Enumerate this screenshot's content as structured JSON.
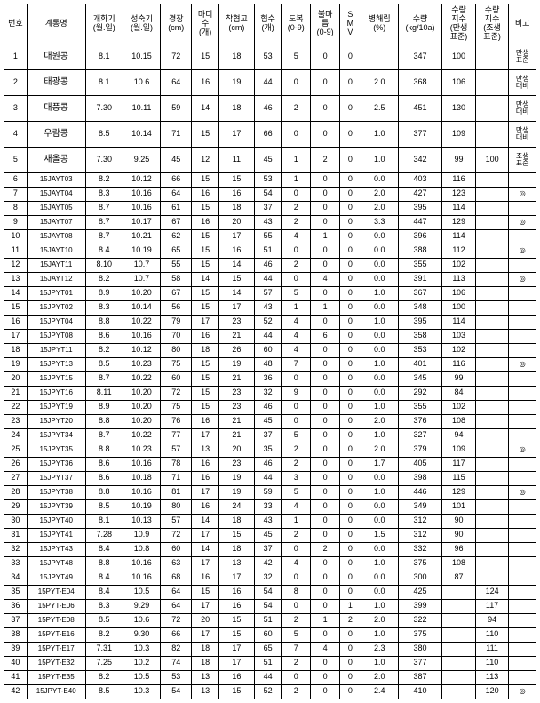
{
  "headers": [
    "번호",
    "계통명",
    "개화기\n(월.일)",
    "성숙기\n(월.일)",
    "경장\n(cm)",
    "마디\n수\n(개)",
    "착협고\n(cm)",
    "협수\n(개)",
    "도복\n(0-9)",
    "불마\n름\n(0-9)",
    "S\nM\nV",
    "병해립\n(%)",
    "수량\n(kg/10a)",
    "수량\n지수\n(만생\n표준)",
    "수량\n지수\n(조생\n표준)",
    "비고"
  ],
  "rows": [
    {
      "tall": true,
      "c": [
        "1",
        "대원콩",
        "8.1",
        "10.15",
        "72",
        "15",
        "18",
        "53",
        "5",
        "0",
        "0",
        "",
        "347",
        "100",
        "",
        "만생\n표준"
      ]
    },
    {
      "tall": true,
      "c": [
        "2",
        "태광콩",
        "8.1",
        "10.6",
        "64",
        "16",
        "19",
        "44",
        "0",
        "0",
        "0",
        "2.0",
        "368",
        "106",
        "",
        "만생\n대비"
      ]
    },
    {
      "tall": true,
      "c": [
        "3",
        "대풍콩",
        "7.30",
        "10.11",
        "59",
        "14",
        "18",
        "46",
        "2",
        "0",
        "0",
        "2.5",
        "451",
        "130",
        "",
        "만생\n대비"
      ]
    },
    {
      "tall": true,
      "c": [
        "4",
        "우람콩",
        "8.5",
        "10.14",
        "71",
        "15",
        "17",
        "66",
        "0",
        "0",
        "0",
        "1.0",
        "377",
        "109",
        "",
        "만생\n대비"
      ]
    },
    {
      "tall": true,
      "c": [
        "5",
        "새올콩",
        "7.30",
        "9.25",
        "45",
        "12",
        "11",
        "45",
        "1",
        "2",
        "0",
        "1.0",
        "342",
        "99",
        "100",
        "조생\n표준"
      ]
    },
    {
      "tall": false,
      "c": [
        "6",
        "15JAYT03",
        "8.2",
        "10.12",
        "66",
        "15",
        "15",
        "53",
        "1",
        "0",
        "0",
        "0.0",
        "403",
        "116",
        "",
        ""
      ]
    },
    {
      "tall": false,
      "c": [
        "7",
        "15JAYT04",
        "8.3",
        "10.16",
        "64",
        "16",
        "16",
        "54",
        "0",
        "0",
        "0",
        "2.0",
        "427",
        "123",
        "",
        "◎"
      ]
    },
    {
      "tall": false,
      "c": [
        "8",
        "15JAYT05",
        "8.7",
        "10.16",
        "61",
        "15",
        "18",
        "37",
        "2",
        "0",
        "0",
        "2.0",
        "395",
        "114",
        "",
        ""
      ]
    },
    {
      "tall": false,
      "c": [
        "9",
        "15JAYT07",
        "8.7",
        "10.17",
        "67",
        "16",
        "20",
        "43",
        "2",
        "0",
        "0",
        "3.3",
        "447",
        "129",
        "",
        "◎"
      ]
    },
    {
      "tall": false,
      "c": [
        "10",
        "15JAYT08",
        "8.7",
        "10.21",
        "62",
        "15",
        "17",
        "55",
        "4",
        "1",
        "0",
        "0.0",
        "396",
        "114",
        "",
        ""
      ]
    },
    {
      "tall": false,
      "c": [
        "11",
        "15JAYT10",
        "8.4",
        "10.19",
        "65",
        "15",
        "16",
        "51",
        "0",
        "0",
        "0",
        "0.0",
        "388",
        "112",
        "",
        "◎"
      ]
    },
    {
      "tall": false,
      "c": [
        "12",
        "15JAYT11",
        "8.10",
        "10.7",
        "55",
        "15",
        "14",
        "46",
        "2",
        "0",
        "0",
        "0.0",
        "355",
        "102",
        "",
        ""
      ]
    },
    {
      "tall": false,
      "c": [
        "13",
        "15JAYT12",
        "8.2",
        "10.7",
        "58",
        "14",
        "15",
        "44",
        "0",
        "4",
        "0",
        "0.0",
        "391",
        "113",
        "",
        "◎"
      ]
    },
    {
      "tall": false,
      "c": [
        "14",
        "15JPYT01",
        "8.9",
        "10.20",
        "67",
        "15",
        "14",
        "57",
        "5",
        "0",
        "0",
        "1.0",
        "367",
        "106",
        "",
        ""
      ]
    },
    {
      "tall": false,
      "c": [
        "15",
        "15JPYT02",
        "8.3",
        "10.14",
        "56",
        "15",
        "17",
        "43",
        "1",
        "1",
        "0",
        "0.0",
        "348",
        "100",
        "",
        ""
      ]
    },
    {
      "tall": false,
      "c": [
        "16",
        "15JPYT04",
        "8.8",
        "10.22",
        "79",
        "17",
        "23",
        "52",
        "4",
        "0",
        "0",
        "1.0",
        "395",
        "114",
        "",
        ""
      ]
    },
    {
      "tall": false,
      "c": [
        "17",
        "15JPYT08",
        "8.6",
        "10.16",
        "70",
        "16",
        "21",
        "44",
        "4",
        "6",
        "0",
        "0.0",
        "358",
        "103",
        "",
        ""
      ]
    },
    {
      "tall": false,
      "c": [
        "18",
        "15JPYT11",
        "8.2",
        "10.12",
        "80",
        "18",
        "26",
        "60",
        "4",
        "0",
        "0",
        "0.0",
        "353",
        "102",
        "",
        ""
      ]
    },
    {
      "tall": false,
      "c": [
        "19",
        "15JPYT13",
        "8.5",
        "10.23",
        "75",
        "15",
        "19",
        "48",
        "7",
        "0",
        "0",
        "1.0",
        "401",
        "116",
        "",
        "◎"
      ]
    },
    {
      "tall": false,
      "c": [
        "20",
        "15JPYT15",
        "8.7",
        "10.22",
        "60",
        "15",
        "21",
        "36",
        "0",
        "0",
        "0",
        "0.0",
        "345",
        "99",
        "",
        ""
      ]
    },
    {
      "tall": false,
      "c": [
        "21",
        "15JPYT16",
        "8.11",
        "10.20",
        "72",
        "15",
        "23",
        "32",
        "9",
        "0",
        "0",
        "0.0",
        "292",
        "84",
        "",
        ""
      ]
    },
    {
      "tall": false,
      "c": [
        "22",
        "15JPYT19",
        "8.9",
        "10.20",
        "75",
        "15",
        "23",
        "46",
        "0",
        "0",
        "0",
        "1.0",
        "355",
        "102",
        "",
        ""
      ]
    },
    {
      "tall": false,
      "c": [
        "23",
        "15JPYT20",
        "8.8",
        "10.20",
        "76",
        "16",
        "21",
        "45",
        "0",
        "0",
        "0",
        "2.0",
        "376",
        "108",
        "",
        ""
      ]
    },
    {
      "tall": false,
      "c": [
        "24",
        "15JPYT34",
        "8.7",
        "10.22",
        "77",
        "17",
        "21",
        "37",
        "5",
        "0",
        "0",
        "1.0",
        "327",
        "94",
        "",
        ""
      ]
    },
    {
      "tall": false,
      "c": [
        "25",
        "15JPYT35",
        "8.8",
        "10.23",
        "57",
        "13",
        "20",
        "35",
        "2",
        "0",
        "0",
        "2.0",
        "379",
        "109",
        "",
        "◎"
      ]
    },
    {
      "tall": false,
      "c": [
        "26",
        "15JPYT36",
        "8.6",
        "10.16",
        "78",
        "16",
        "23",
        "46",
        "2",
        "0",
        "0",
        "1.7",
        "405",
        "117",
        "",
        ""
      ]
    },
    {
      "tall": false,
      "c": [
        "27",
        "15JPYT37",
        "8.6",
        "10.18",
        "71",
        "16",
        "19",
        "44",
        "3",
        "0",
        "0",
        "0.0",
        "398",
        "115",
        "",
        ""
      ]
    },
    {
      "tall": false,
      "c": [
        "28",
        "15JPYT38",
        "8.8",
        "10.16",
        "81",
        "17",
        "19",
        "59",
        "5",
        "0",
        "0",
        "1.0",
        "446",
        "129",
        "",
        "◎"
      ]
    },
    {
      "tall": false,
      "c": [
        "29",
        "15JPYT39",
        "8.5",
        "10.19",
        "80",
        "16",
        "24",
        "33",
        "4",
        "0",
        "0",
        "0.0",
        "349",
        "101",
        "",
        ""
      ]
    },
    {
      "tall": false,
      "c": [
        "30",
        "15JPYT40",
        "8.1",
        "10.13",
        "57",
        "14",
        "18",
        "43",
        "1",
        "0",
        "0",
        "0.0",
        "312",
        "90",
        "",
        ""
      ]
    },
    {
      "tall": false,
      "c": [
        "31",
        "15JPYT41",
        "7.28",
        "10.9",
        "72",
        "17",
        "15",
        "45",
        "2",
        "0",
        "0",
        "1.5",
        "312",
        "90",
        "",
        ""
      ]
    },
    {
      "tall": false,
      "c": [
        "32",
        "15JPYT43",
        "8.4",
        "10.8",
        "60",
        "14",
        "18",
        "37",
        "0",
        "2",
        "0",
        "0.0",
        "332",
        "96",
        "",
        ""
      ]
    },
    {
      "tall": false,
      "c": [
        "33",
        "15JPYT48",
        "8.8",
        "10.16",
        "63",
        "17",
        "13",
        "42",
        "4",
        "0",
        "0",
        "1.0",
        "375",
        "108",
        "",
        ""
      ]
    },
    {
      "tall": false,
      "c": [
        "34",
        "15JPYT49",
        "8.4",
        "10.16",
        "68",
        "16",
        "17",
        "32",
        "0",
        "0",
        "0",
        "0.0",
        "300",
        "87",
        "",
        ""
      ]
    },
    {
      "tall": false,
      "c": [
        "35",
        "15PYT-E04",
        "8.4",
        "10.5",
        "64",
        "15",
        "16",
        "54",
        "8",
        "0",
        "0",
        "0.0",
        "425",
        "",
        "124",
        ""
      ]
    },
    {
      "tall": false,
      "c": [
        "36",
        "15PYT-E06",
        "8.3",
        "9.29",
        "64",
        "17",
        "16",
        "54",
        "0",
        "0",
        "1",
        "1.0",
        "399",
        "",
        "117",
        ""
      ]
    },
    {
      "tall": false,
      "c": [
        "37",
        "15PYT-E08",
        "8.5",
        "10.6",
        "72",
        "20",
        "15",
        "51",
        "2",
        "1",
        "2",
        "2.0",
        "322",
        "",
        "94",
        ""
      ]
    },
    {
      "tall": false,
      "c": [
        "38",
        "15PYT-E16",
        "8.2",
        "9.30",
        "66",
        "17",
        "15",
        "60",
        "5",
        "0",
        "0",
        "1.0",
        "375",
        "",
        "110",
        ""
      ]
    },
    {
      "tall": false,
      "c": [
        "39",
        "15PYT-E17",
        "7.31",
        "10.3",
        "82",
        "18",
        "17",
        "65",
        "7",
        "4",
        "0",
        "2.3",
        "380",
        "",
        "111",
        ""
      ]
    },
    {
      "tall": false,
      "c": [
        "40",
        "15PYT-E32",
        "7.25",
        "10.2",
        "74",
        "18",
        "17",
        "51",
        "2",
        "0",
        "0",
        "1.0",
        "377",
        "",
        "110",
        ""
      ]
    },
    {
      "tall": false,
      "c": [
        "41",
        "15PYT-E35",
        "8.2",
        "10.5",
        "53",
        "13",
        "16",
        "44",
        "0",
        "0",
        "0",
        "2.0",
        "387",
        "",
        "113",
        ""
      ]
    },
    {
      "tall": false,
      "c": [
        "42",
        "15JPYT-E40",
        "8.5",
        "10.3",
        "54",
        "13",
        "15",
        "52",
        "2",
        "0",
        "0",
        "2.4",
        "410",
        "",
        "120",
        "◎"
      ]
    }
  ],
  "colWidths": [
    "22",
    "56",
    "36",
    "36",
    "30",
    "26",
    "34",
    "26",
    "28",
    "28",
    "20",
    "36",
    "42",
    "32",
    "32",
    "26"
  ]
}
